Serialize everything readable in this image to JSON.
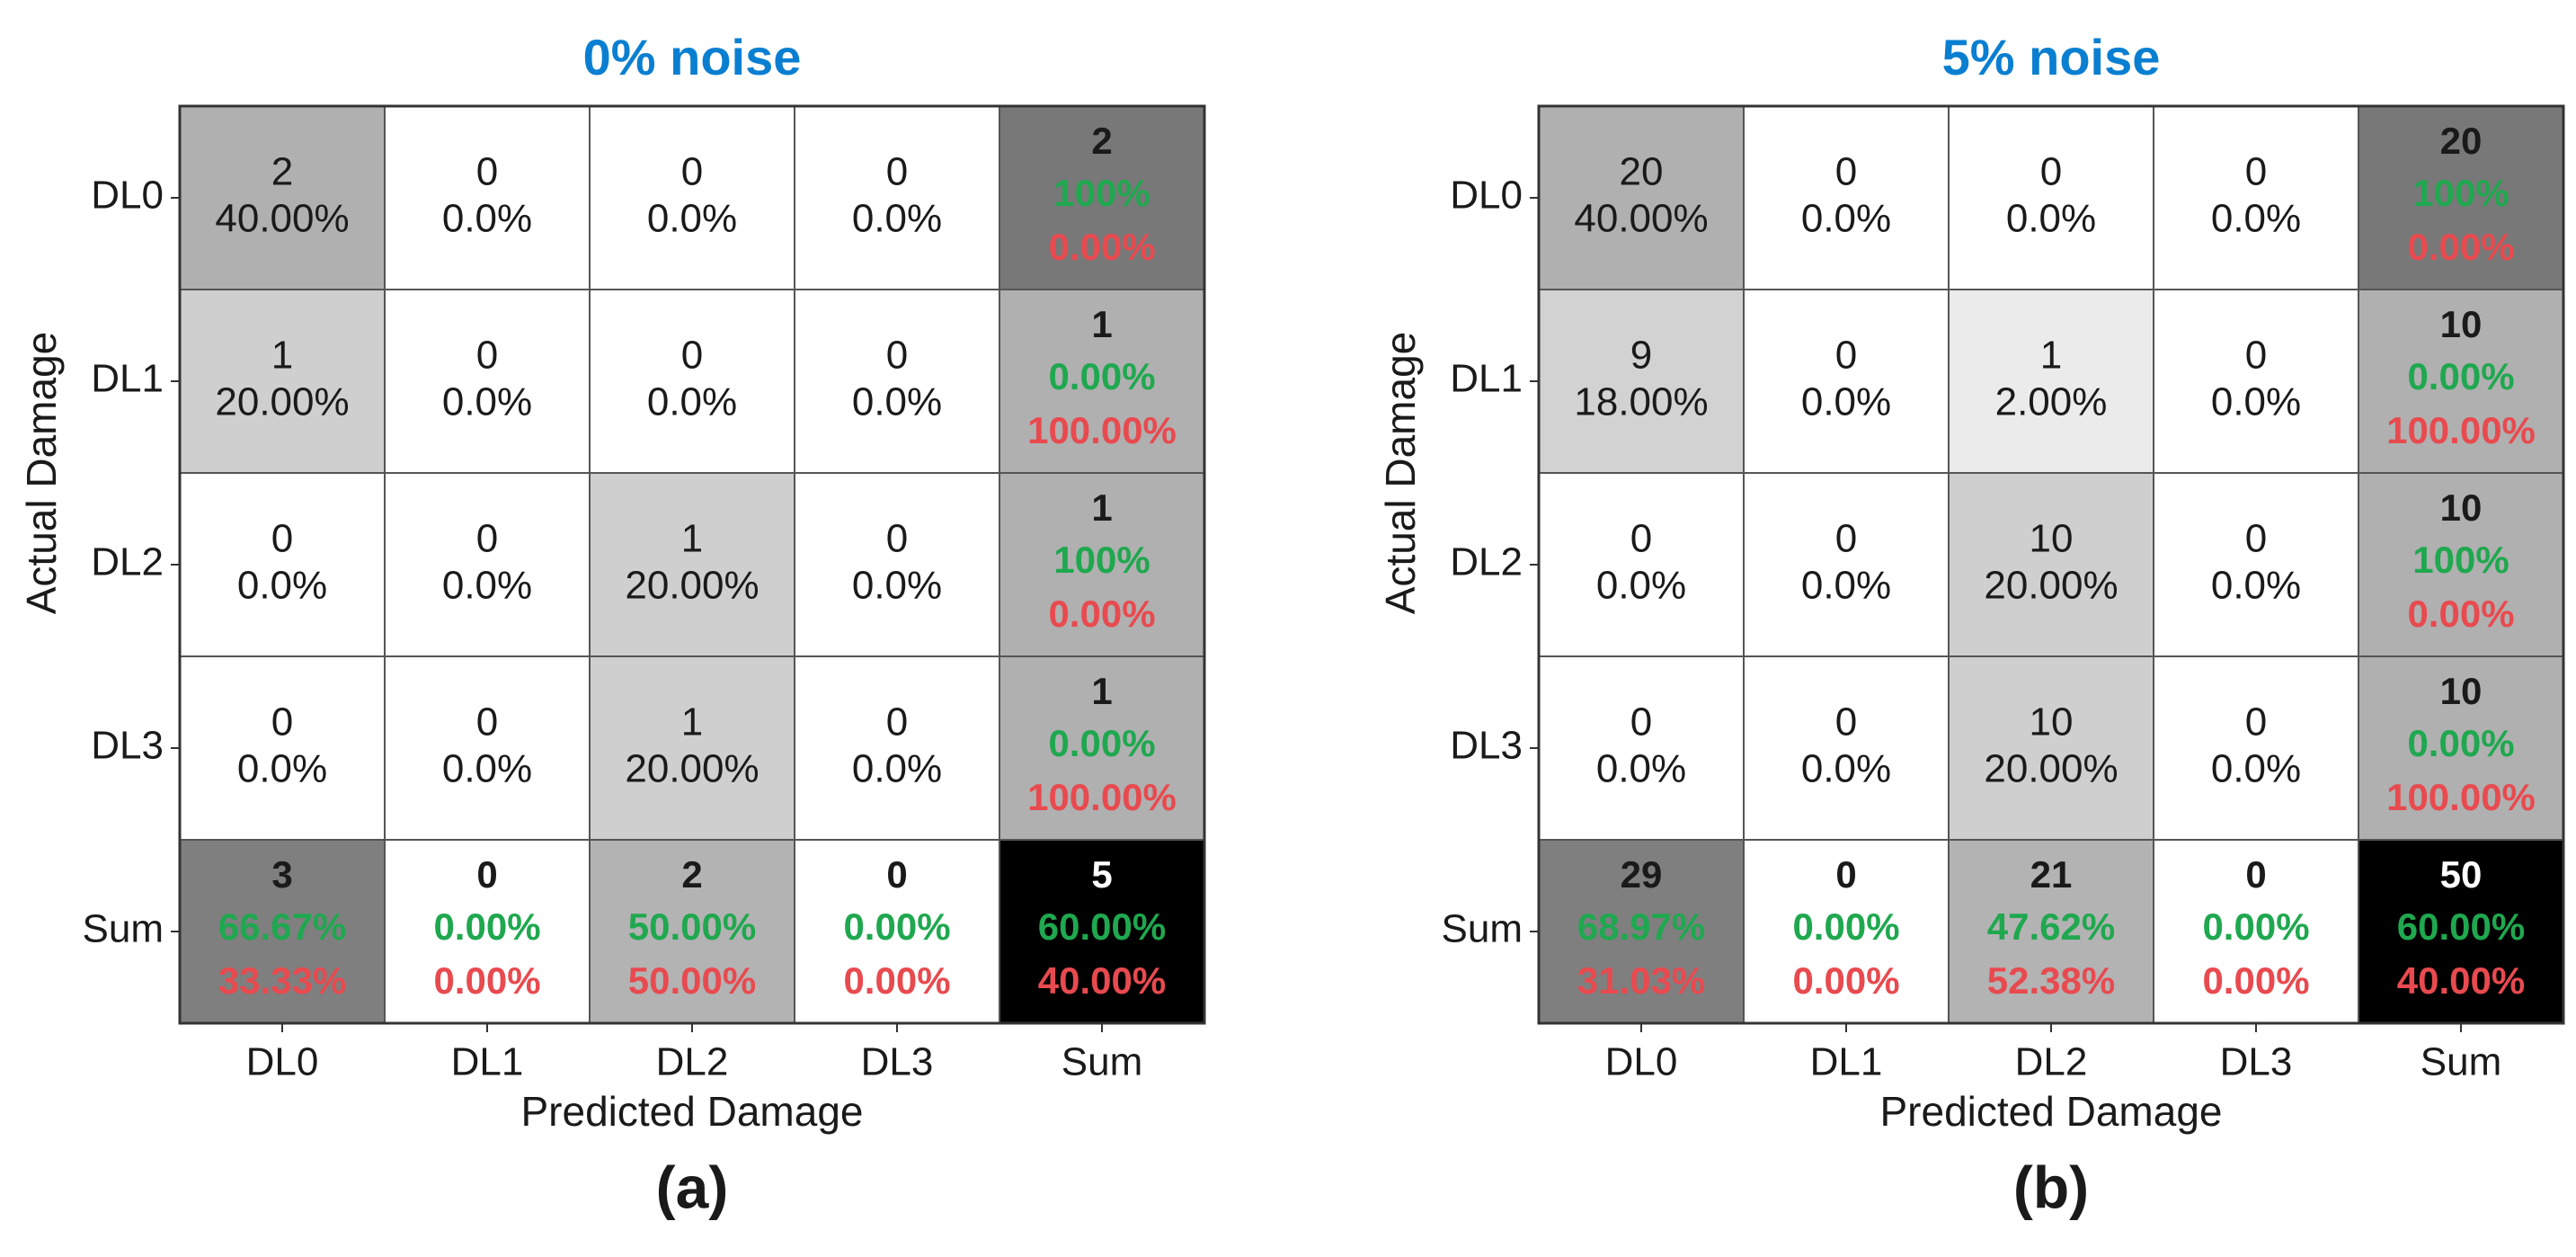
{
  "chart_data": [
    {
      "type": "heatmap",
      "panel_label": "(a)",
      "title": "0% noise",
      "xlabel": "Predicted Damage",
      "ylabel": "Actual Damage",
      "row_labels": [
        "DL0",
        "DL1",
        "DL2",
        "DL3",
        "Sum"
      ],
      "col_labels": [
        "DL0",
        "DL1",
        "DL2",
        "DL3",
        "Sum"
      ],
      "matrix": {
        "counts": [
          [
            2,
            0,
            0,
            0
          ],
          [
            1,
            0,
            0,
            0
          ],
          [
            0,
            0,
            1,
            0
          ],
          [
            0,
            0,
            1,
            0
          ]
        ],
        "percents": [
          [
            "40.00%",
            "0.0%",
            "0.0%",
            "0.0%"
          ],
          [
            "20.00%",
            "0.0%",
            "0.0%",
            "0.0%"
          ],
          [
            "0.0%",
            "0.0%",
            "20.00%",
            "0.0%"
          ],
          [
            "0.0%",
            "0.0%",
            "20.00%",
            "0.0%"
          ]
        ]
      },
      "row_sums": [
        {
          "total": 2,
          "correct": "100%",
          "error": "0.00%"
        },
        {
          "total": 1,
          "correct": "0.00%",
          "error": "100.00%"
        },
        {
          "total": 1,
          "correct": "100%",
          "error": "0.00%"
        },
        {
          "total": 1,
          "correct": "0.00%",
          "error": "100.00%"
        }
      ],
      "col_sums": [
        {
          "total": 3,
          "correct": "66.67%",
          "error": "33.33%"
        },
        {
          "total": 0,
          "correct": "0.00%",
          "error": "0.00%"
        },
        {
          "total": 2,
          "correct": "50.00%",
          "error": "50.00%"
        },
        {
          "total": 0,
          "correct": "0.00%",
          "error": "0.00%"
        }
      ],
      "grand_total": {
        "total": 5,
        "correct": "60.00%",
        "error": "40.00%"
      }
    },
    {
      "type": "heatmap",
      "panel_label": "(b)",
      "title": "5% noise",
      "xlabel": "Predicted Damage",
      "ylabel": "Actual Damage",
      "row_labels": [
        "DL0",
        "DL1",
        "DL2",
        "DL3",
        "Sum"
      ],
      "col_labels": [
        "DL0",
        "DL1",
        "DL2",
        "DL3",
        "Sum"
      ],
      "matrix": {
        "counts": [
          [
            20,
            0,
            0,
            0
          ],
          [
            9,
            0,
            1,
            0
          ],
          [
            0,
            0,
            10,
            0
          ],
          [
            0,
            0,
            10,
            0
          ]
        ],
        "percents": [
          [
            "40.00%",
            "0.0%",
            "0.0%",
            "0.0%"
          ],
          [
            "18.00%",
            "0.0%",
            "2.00%",
            "0.0%"
          ],
          [
            "0.0%",
            "0.0%",
            "20.00%",
            "0.0%"
          ],
          [
            "0.0%",
            "0.0%",
            "20.00%",
            "0.0%"
          ]
        ]
      },
      "row_sums": [
        {
          "total": 20,
          "correct": "100%",
          "error": "0.00%"
        },
        {
          "total": 10,
          "correct": "0.00%",
          "error": "100.00%"
        },
        {
          "total": 10,
          "correct": "100%",
          "error": "0.00%"
        },
        {
          "total": 10,
          "correct": "0.00%",
          "error": "100.00%"
        }
      ],
      "col_sums": [
        {
          "total": 29,
          "correct": "68.97%",
          "error": "31.03%"
        },
        {
          "total": 0,
          "correct": "0.00%",
          "error": "0.00%"
        },
        {
          "total": 21,
          "correct": "47.62%",
          "error": "52.38%"
        },
        {
          "total": 0,
          "correct": "0.00%",
          "error": "0.00%"
        }
      ],
      "grand_total": {
        "total": 50,
        "correct": "60.00%",
        "error": "40.00%"
      }
    }
  ],
  "colors": {
    "title": "#0a7fd1",
    "correct": "#1fa84f",
    "error": "#e84a4f",
    "text": "#1a1a1a",
    "grid": "#555555",
    "grand_total_bg": "#000000",
    "grand_total_count": "#ffffff"
  }
}
